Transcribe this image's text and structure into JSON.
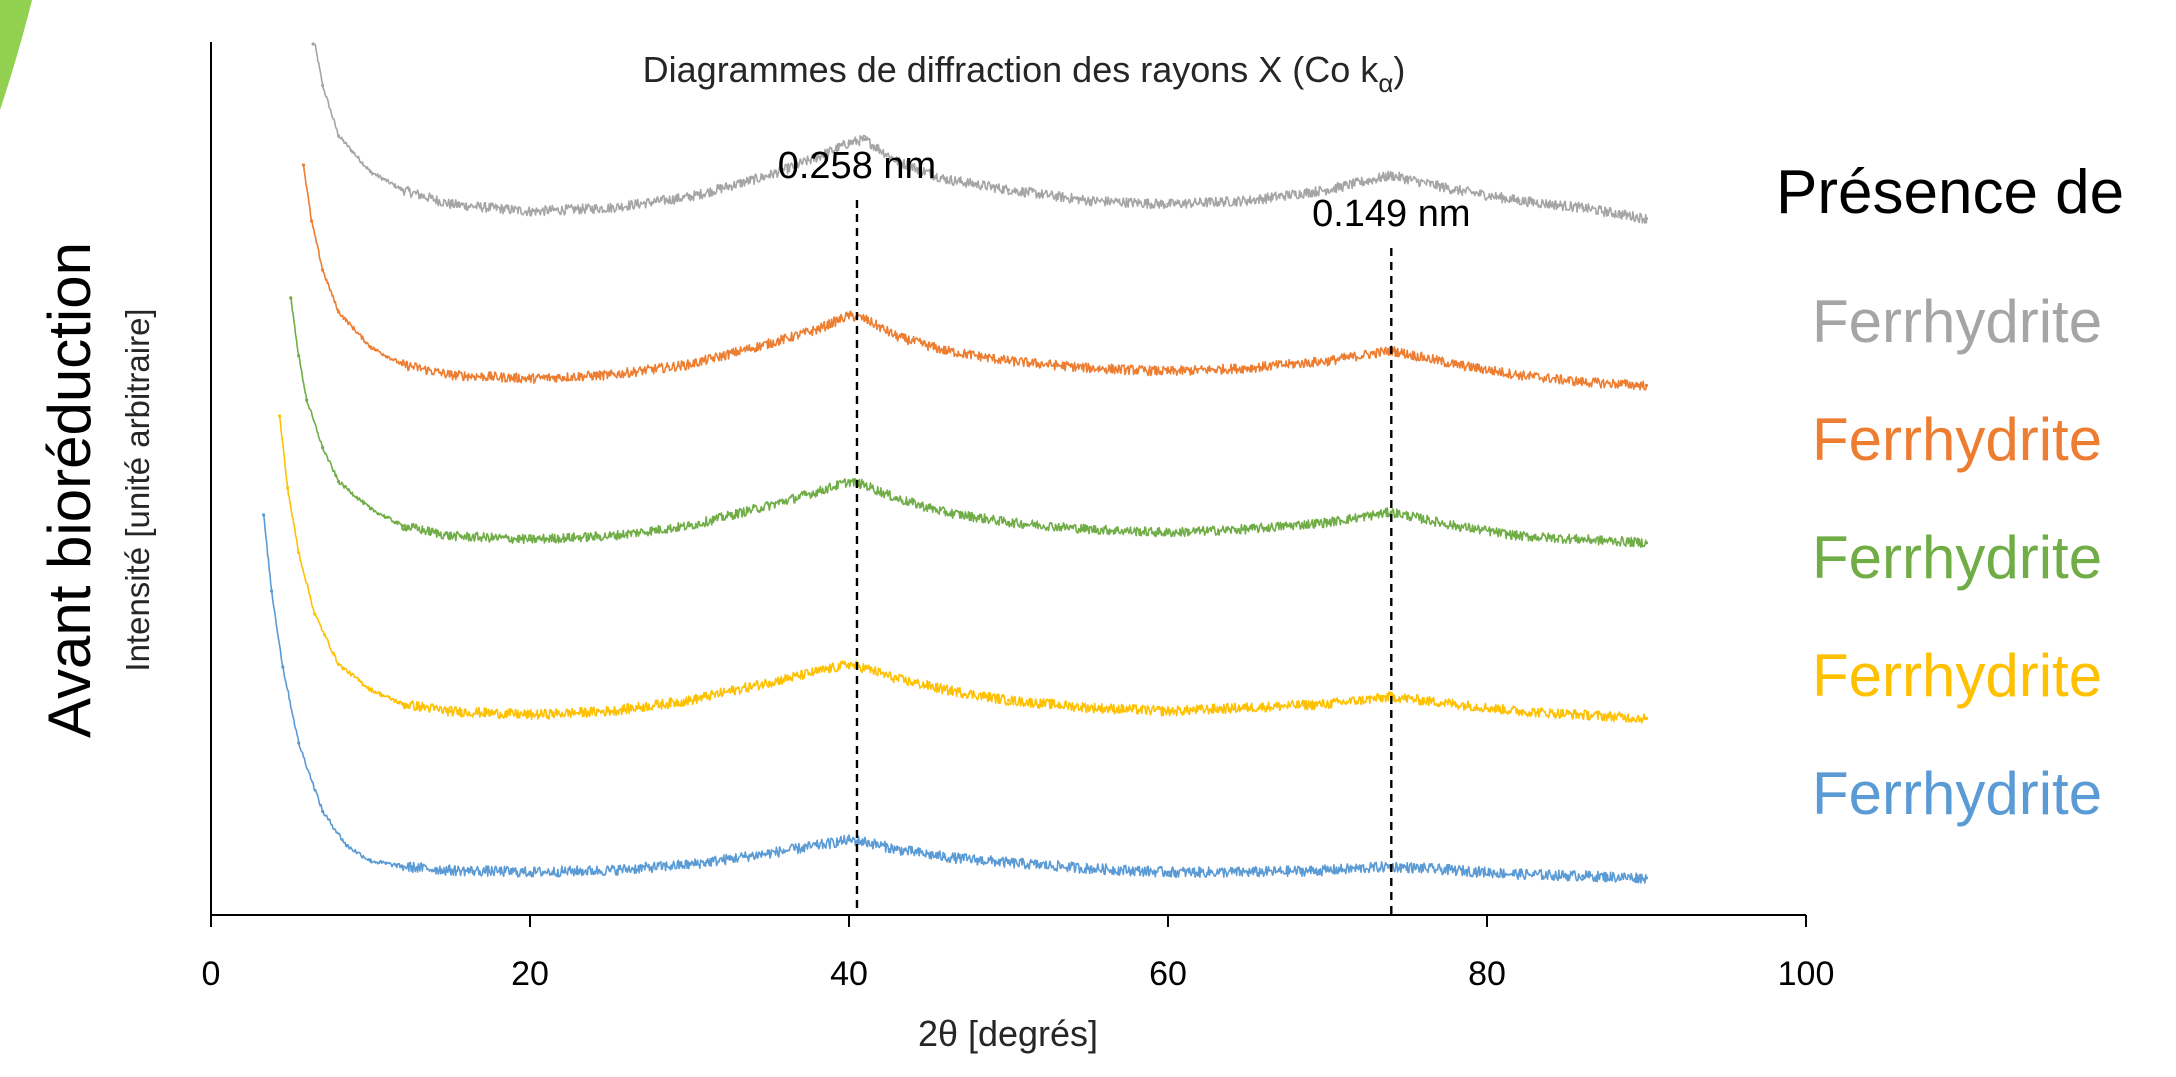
{
  "slide": {
    "side_title": "Avant bioréduction",
    "legend_title": "Présence de",
    "accent_color": "#92D050"
  },
  "chart_data": {
    "type": "line",
    "title": "Diagrammes de diffraction des rayons X (Co k",
    "title_subscript": "α",
    "title_suffix": ")",
    "xlabel": "2θ [degrés]",
    "ylabel": "Intensité [unité arbitraire]",
    "xlim": [
      0,
      100
    ],
    "xticks": [
      0,
      20,
      40,
      60,
      80,
      100
    ],
    "yaxis_ticks": false,
    "grid": false,
    "legend_placement": "right",
    "annotations": [
      {
        "label": "0.258 nm",
        "x": 40.5
      },
      {
        "label": "0.149 nm",
        "x": 74
      }
    ],
    "series": [
      {
        "name": "Ferrhydrite",
        "color": "#A5A5A5",
        "x": [
          6.4,
          7,
          8,
          10,
          12,
          15,
          20,
          25,
          30,
          35,
          38,
          40,
          41,
          43,
          46,
          50,
          55,
          60,
          65,
          70,
          74,
          78,
          82,
          86,
          90
        ],
        "y": [
          100,
          86,
          72,
          62,
          57,
          53,
          51,
          52,
          55,
          61,
          66,
          70,
          71,
          65,
          60,
          57,
          54,
          53,
          54,
          57,
          61,
          57,
          54,
          52,
          49
        ]
      },
      {
        "name": "Ferrhydrite",
        "color": "#ED7D31",
        "x": [
          5.8,
          6.3,
          7,
          8,
          10,
          12,
          15,
          20,
          25,
          30,
          35,
          38,
          40,
          41,
          43,
          46,
          50,
          55,
          60,
          65,
          70,
          74,
          78,
          82,
          86,
          90
        ],
        "y": [
          100,
          84,
          70,
          58,
          48,
          43,
          40,
          39,
          40,
          43,
          49,
          53,
          57,
          56,
          51,
          47,
          44,
          42,
          41,
          42,
          44,
          47,
          43,
          40,
          38,
          37
        ]
      },
      {
        "name": "Ferrhydrite",
        "color": "#70AD47",
        "x": [
          5.0,
          5.5,
          6,
          7,
          8,
          10,
          12,
          15,
          20,
          25,
          30,
          35,
          38,
          40,
          41,
          43,
          46,
          50,
          55,
          60,
          65,
          70,
          74,
          78,
          82,
          86,
          90
        ],
        "y": [
          100,
          83,
          70,
          56,
          46,
          38,
          33,
          30,
          29,
          30,
          33,
          39,
          43,
          46,
          45,
          41,
          37,
          34,
          32,
          31,
          32,
          34,
          37,
          33,
          30,
          29,
          28
        ]
      },
      {
        "name": "Ferrhydrite",
        "color": "#FFC000",
        "x": [
          4.3,
          4.8,
          5.5,
          6.5,
          8,
          10,
          12,
          15,
          20,
          25,
          30,
          35,
          38,
          40,
          41,
          43,
          46,
          50,
          55,
          60,
          65,
          70,
          74,
          78,
          82,
          86,
          90
        ],
        "y": [
          100,
          80,
          62,
          45,
          31,
          24,
          20,
          18,
          17,
          18,
          21,
          26,
          29,
          31,
          30,
          27,
          24,
          21,
          19,
          18,
          19,
          20,
          22,
          20,
          18,
          17,
          16
        ]
      },
      {
        "name": "Ferrhydrite",
        "color": "#5B9BD5",
        "x": [
          3.3,
          3.8,
          4.5,
          5.5,
          7,
          8.5,
          10,
          12,
          15,
          20,
          25,
          30,
          35,
          38,
          40,
          41,
          43,
          46,
          50,
          55,
          60,
          65,
          70,
          74,
          78,
          82,
          86,
          90
        ],
        "y": [
          100,
          80,
          60,
          40,
          22,
          13,
          9,
          7.5,
          6.5,
          6,
          6.5,
          8,
          11,
          13,
          14.5,
          14,
          12,
          10,
          8.5,
          7,
          6,
          6,
          6.5,
          7.5,
          6.5,
          5.5,
          5,
          4.5
        ]
      }
    ]
  }
}
